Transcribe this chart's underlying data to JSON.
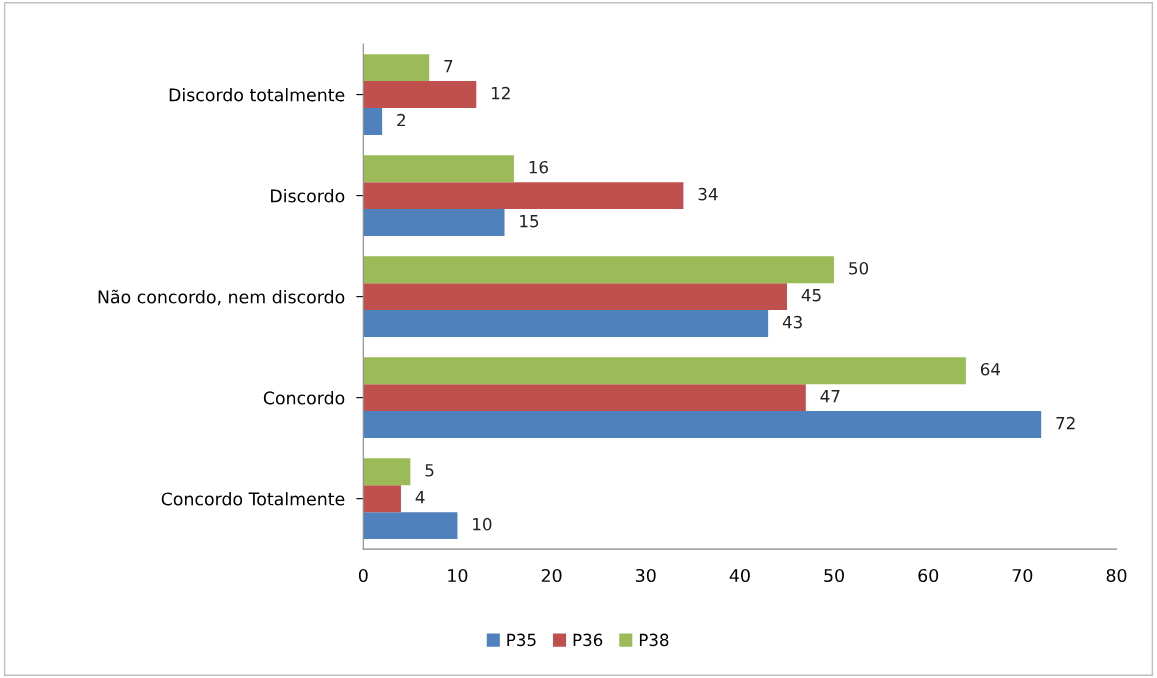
{
  "chart_data": {
    "type": "bar",
    "orientation": "horizontal",
    "categories": [
      "Discordo totalmente",
      "Discordo",
      "Não concordo, nem discordo",
      "Concordo",
      "Concordo Totalmente"
    ],
    "series": [
      {
        "name": "P35",
        "color": "#4f81bd",
        "values": [
          2,
          15,
          43,
          72,
          10
        ]
      },
      {
        "name": "P36",
        "color": "#c0504d",
        "values": [
          12,
          34,
          45,
          47,
          4
        ]
      },
      {
        "name": "P38",
        "color": "#9bbb59",
        "values": [
          7,
          16,
          50,
          64,
          5
        ]
      }
    ],
    "xlim": [
      0,
      80
    ],
    "xticks": [
      0,
      10,
      20,
      30,
      40,
      50,
      60,
      70,
      80
    ],
    "data_labels": true,
    "legend": "bottom",
    "grid": false
  }
}
